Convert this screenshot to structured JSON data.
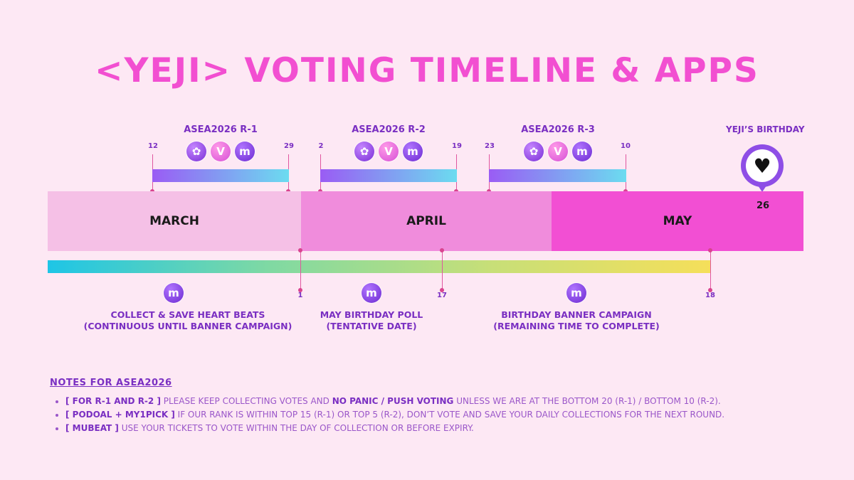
{
  "title": "<YEJI> VOTING TIMELINE & APPS",
  "rounds": [
    {
      "label": "ASEA2026 R-1",
      "start": "12",
      "end": "29",
      "apps": [
        "podoal-icon",
        "my1pick-icon",
        "mubeat-icon"
      ]
    },
    {
      "label": "ASEA2026 R-2",
      "start": "2",
      "end": "19",
      "apps": [
        "podoal-icon",
        "my1pick-icon",
        "mubeat-icon"
      ]
    },
    {
      "label": "ASEA2026 R-3",
      "start": "23",
      "end": "10",
      "apps": [
        "podoal-icon",
        "my1pick-icon",
        "mubeat-icon"
      ]
    }
  ],
  "birthday": {
    "label": "YEJI’S BIRTHDAY",
    "day": "26",
    "icon": "heart-icon"
  },
  "months": [
    "MARCH",
    "APRIL",
    "MAY"
  ],
  "mubeat_ticks": [
    "1",
    "17",
    "18"
  ],
  "mubeat_events": [
    {
      "line1": "COLLECT & SAVE HEART BEATS",
      "line2": "(CONTINUOUS UNTIL BANNER CAMPAIGN)"
    },
    {
      "line1": "MAY BIRTHDAY POLL",
      "line2": "(TENTATIVE DATE)"
    },
    {
      "line1": "BIRTHDAY BANNER CAMPAIGN",
      "line2": "(REMAINING TIME TO COMPLETE)"
    }
  ],
  "notes": {
    "title": "NOTES FOR ASEA2026",
    "items": [
      {
        "tag": "[ FOR R-1 AND R-2 ]",
        "text1": " PLEASE KEEP COLLECTING VOTES AND ",
        "bold": "NO PANIC / PUSH VOTING",
        "text2": " UNLESS WE ARE AT THE BOTTOM 20 (R-1) / BOTTOM 10 (R-2)."
      },
      {
        "tag": "[ PODOAL + MY1PICK ]",
        "text1": " IF OUR RANK IS WITHIN TOP 15 (R-1) OR TOP 5 (R-2), DON’T VOTE AND SAVE YOUR DAILY COLLECTIONS FOR THE NEXT ROUND."
      },
      {
        "tag": "[ MUBEAT ]",
        "text1": " USE YOUR TICKETS TO VOTE WITHIN THE DAY OF COLLECTION OR BEFORE EXPIRY."
      }
    ]
  },
  "colors": {
    "title": "#f24fd1",
    "accent": "#7a2fc2",
    "march": "#f5c0e6",
    "april": "#f08cdc",
    "may": "#f24fd3",
    "background": "#fde8f4"
  }
}
